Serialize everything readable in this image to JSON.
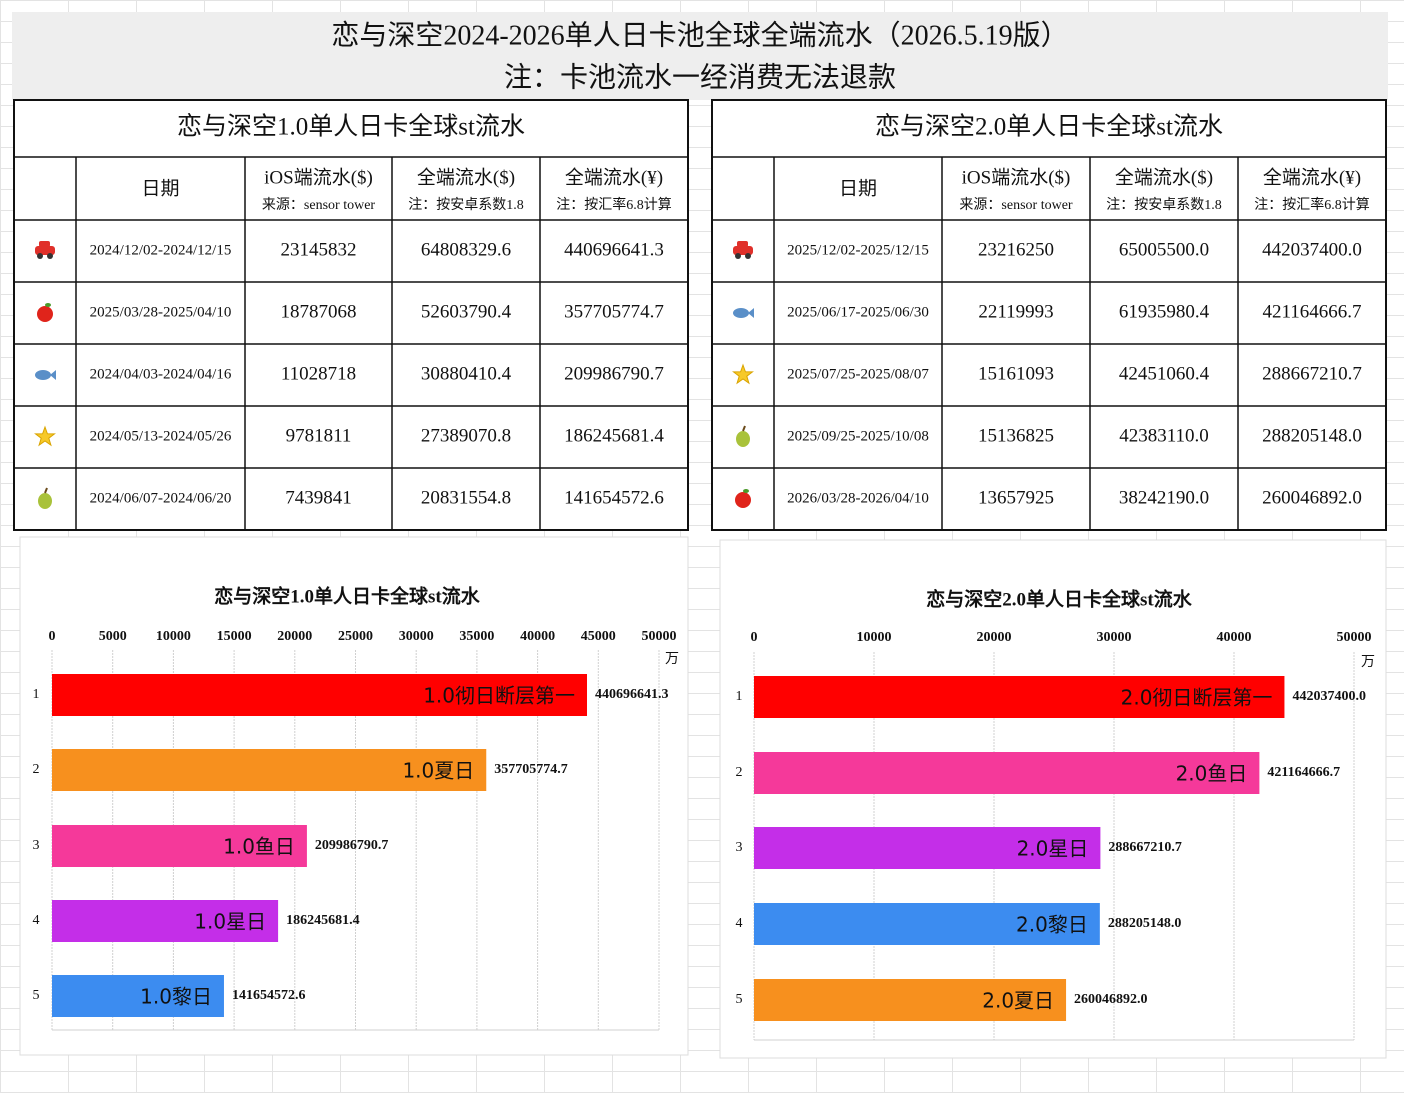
{
  "header": {
    "title": "恋与深空2024-2026单人日卡池全球全端流水（2026.5.19版）",
    "note": "注：卡池流水一经消费无法退款"
  },
  "tables": [
    {
      "title": "恋与深空1.0单人日卡全球st流水",
      "columns": [
        {
          "label": "日期"
        },
        {
          "label": "iOS端流水($)",
          "note": "来源：sensor tower"
        },
        {
          "label": "全端流水($)",
          "note": "注：按安卓系数1.8"
        },
        {
          "label": "全端流水(¥)",
          "note": "注：按汇率6.8计算"
        }
      ],
      "rows": [
        [
          "2024/12/02-2024/12/15",
          "23145832",
          "64808329.6",
          "440696641.3"
        ],
        [
          "2025/03/28-2025/04/10",
          "18787068",
          "52603790.4",
          "357705774.7"
        ],
        [
          "2024/04/03-2024/04/16",
          "11028718",
          "30880410.4",
          "209986790.7"
        ],
        [
          "2024/05/13-2024/05/26",
          "9781811",
          "27389070.8",
          "186245681.4"
        ],
        [
          "2024/06/07-2024/06/20",
          "7439841",
          "20831554.8",
          "141654572.6"
        ]
      ]
    },
    {
      "title": "恋与深空2.0单人日卡全球st流水",
      "columns": [
        {
          "label": "日期"
        },
        {
          "label": "iOS端流水($)",
          "note": "来源：sensor tower"
        },
        {
          "label": "全端流水($)",
          "note": "注：按安卓系数1.8"
        },
        {
          "label": "全端流水(¥)",
          "note": "注：按汇率6.8计算"
        }
      ],
      "rows": [
        [
          "2025/12/02-2025/12/15",
          "23216250",
          "65005500.0",
          "442037400.0"
        ],
        [
          "2025/06/17-2025/06/30",
          "22119993",
          "61935980.4",
          "421164666.7"
        ],
        [
          "2025/07/25-2025/08/07",
          "15161093",
          "42451060.4",
          "288667210.7"
        ],
        [
          "2025/09/25-2025/10/08",
          "15136825",
          "42383110.0",
          "288205148.0"
        ],
        [
          "2026/03/28-2026/04/10",
          "13657925",
          "38242190.0",
          "260046892.0"
        ]
      ]
    }
  ],
  "chart_data": [
    {
      "type": "barh",
      "title": "恋与深空1.0单人日卡全球st流水",
      "categories": [
        "1",
        "2",
        "3",
        "4",
        "5"
      ],
      "values": [
        44069.66413,
        35770.57747,
        20998.67907,
        18624.56814,
        14165.45726
      ],
      "value_labels": [
        "440696641.3",
        "357705774.7",
        "209986790.7",
        "186245681.4",
        "141654572.6"
      ],
      "bar_labels": [
        "1.0彻日断层第一",
        "1.0夏日",
        "1.0鱼日",
        "1.0星日",
        "1.0黎日"
      ],
      "colors": [
        "#ff0000",
        "#f7901e",
        "#f5399a",
        "#c42ee8",
        "#3c8cf0"
      ],
      "xlim": [
        0,
        50000
      ],
      "xticks": [
        0,
        5000,
        10000,
        15000,
        20000,
        25000,
        30000,
        35000,
        40000,
        45000,
        50000
      ],
      "x_unit": "万",
      "grid": true
    },
    {
      "type": "barh",
      "title": "恋与深空2.0单人日卡全球st流水",
      "categories": [
        "1",
        "2",
        "3",
        "4",
        "5"
      ],
      "values": [
        44203.74,
        42116.46667,
        28866.72107,
        28820.5148,
        26004.6892
      ],
      "value_labels": [
        "442037400.0",
        "421164666.7",
        "288667210.7",
        "288205148.0",
        "260046892.0"
      ],
      "bar_labels": [
        "2.0彻日断层第一",
        "2.0鱼日",
        "2.0星日",
        "2.0黎日",
        "2.0夏日"
      ],
      "colors": [
        "#ff0000",
        "#f5399a",
        "#c42ee8",
        "#3c8cf0",
        "#f7901e"
      ],
      "xlim": [
        0,
        50000
      ],
      "xticks": [
        0,
        10000,
        20000,
        30000,
        40000,
        50000
      ],
      "x_unit": "万",
      "grid": true
    }
  ]
}
